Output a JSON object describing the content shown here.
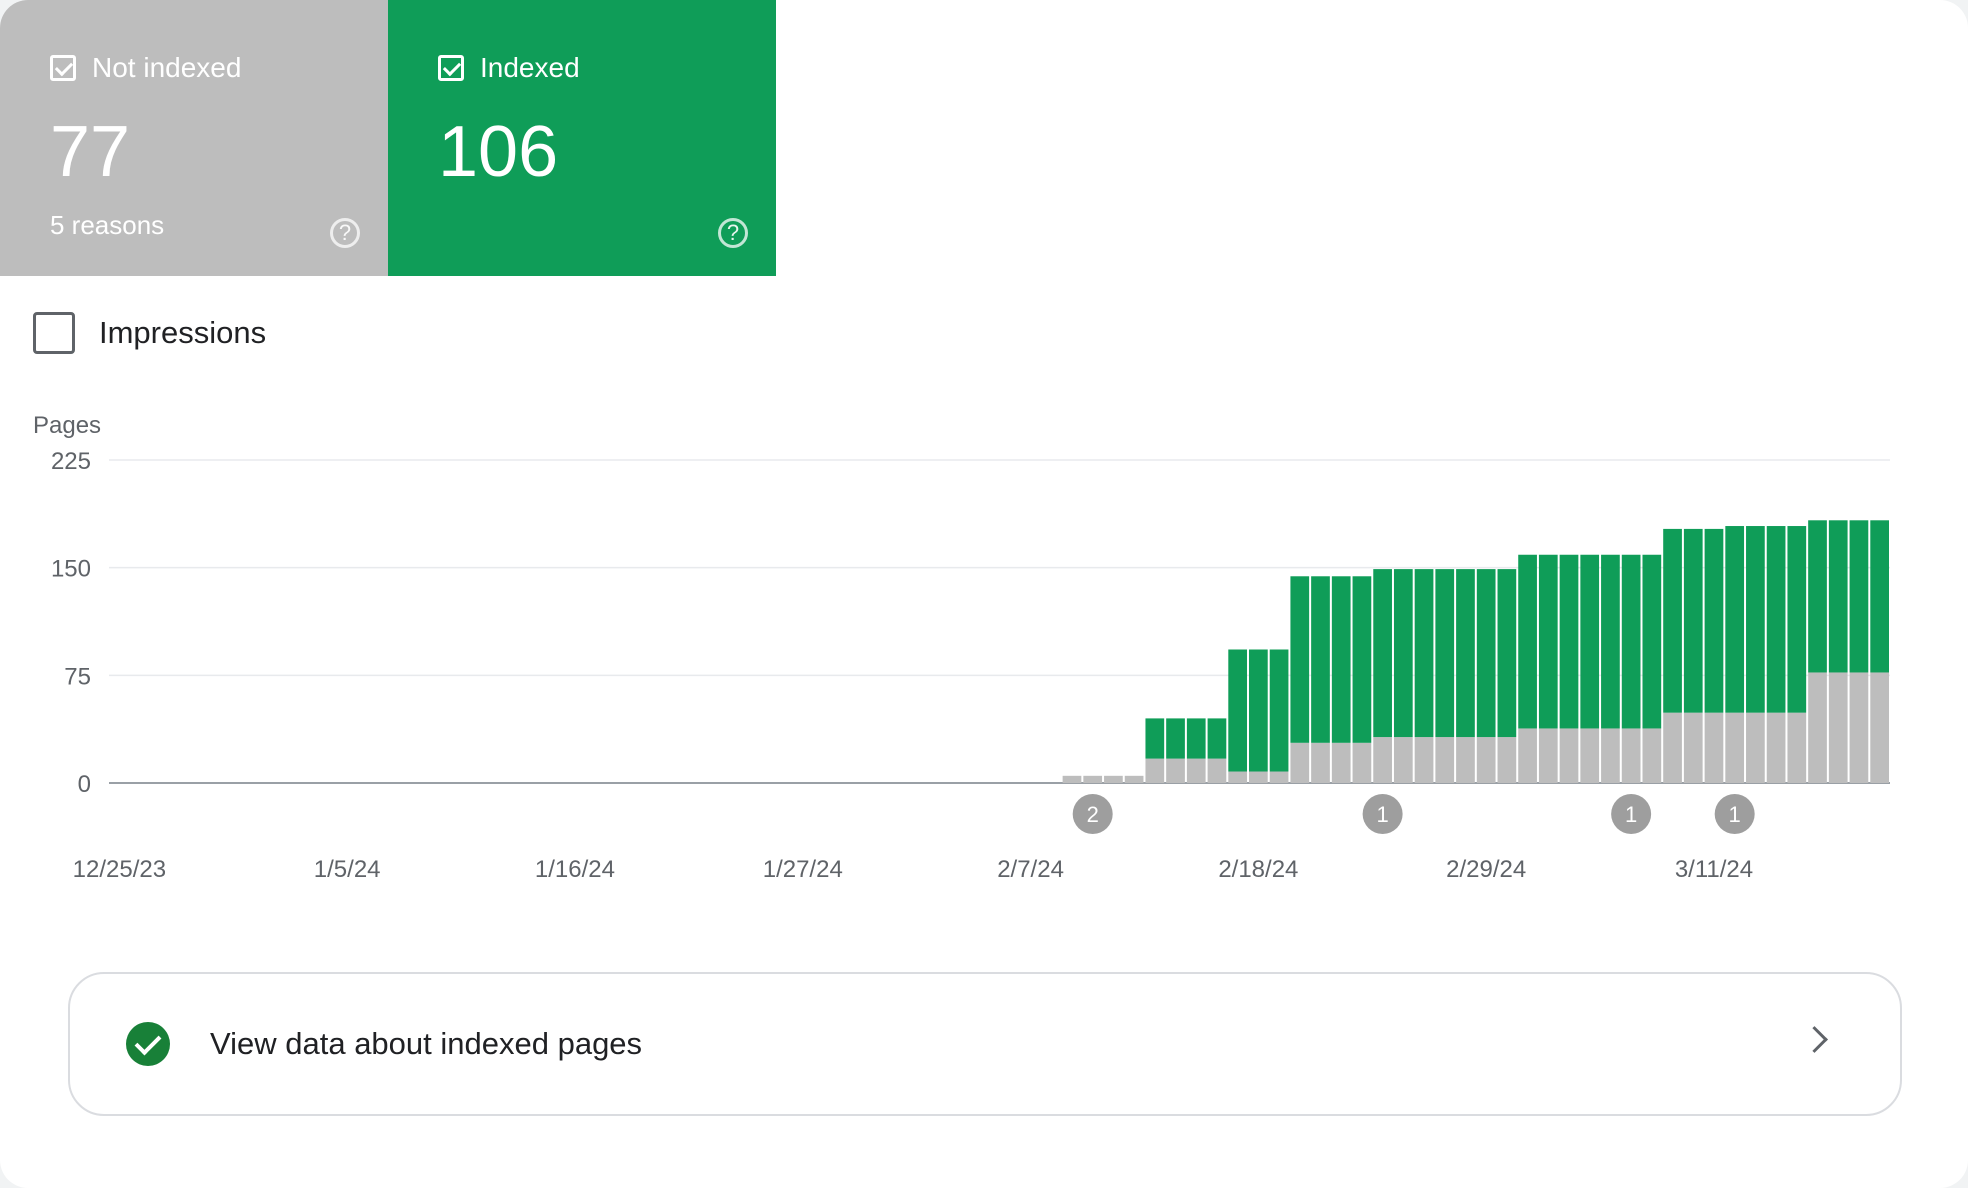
{
  "tiles": {
    "not_indexed": {
      "label": "Not indexed",
      "value": "77",
      "subtitle": "5 reasons",
      "help": "?"
    },
    "indexed": {
      "label": "Indexed",
      "value": "106",
      "help": "?"
    }
  },
  "impressions_label": "Impressions",
  "view_link": {
    "label": "View data about indexed pages"
  },
  "colors": {
    "indexed": "#0f9d58",
    "not_indexed": "#bdbdbd",
    "check": "#188038"
  },
  "chart_data": {
    "type": "bar",
    "stacked": true,
    "ylabel": "Pages",
    "ylim": [
      0,
      225
    ],
    "yticks": [
      0,
      75,
      150,
      225
    ],
    "xticks": [
      "12/25/23",
      "1/5/24",
      "1/16/24",
      "1/27/24",
      "2/7/24",
      "2/18/24",
      "2/29/24",
      "3/11/24"
    ],
    "x_start": "12/25/23",
    "x_end": "3/20/24",
    "grid": true,
    "annotations": [
      {
        "date": "2/10/24",
        "label": "2"
      },
      {
        "date": "2/24/24",
        "label": "1"
      },
      {
        "date": "3/7/24",
        "label": "1"
      },
      {
        "date": "3/12/24",
        "label": "1"
      }
    ],
    "series": [
      {
        "name": "Not indexed",
        "color": "#bdbdbd",
        "x": [
          "2/9/24",
          "2/10/24",
          "2/11/24",
          "2/12/24",
          "2/13/24",
          "2/14/24",
          "2/15/24",
          "2/16/24",
          "2/17/24",
          "2/18/24",
          "2/19/24",
          "2/20/24",
          "2/21/24",
          "2/22/24",
          "2/23/24",
          "2/24/24",
          "2/25/24",
          "2/26/24",
          "2/27/24",
          "2/28/24",
          "2/29/24",
          "3/1/24",
          "3/2/24",
          "3/3/24",
          "3/4/24",
          "3/5/24",
          "3/6/24",
          "3/7/24",
          "3/8/24",
          "3/9/24",
          "3/10/24",
          "3/11/24",
          "3/12/24",
          "3/13/24",
          "3/14/24",
          "3/15/24",
          "3/16/24",
          "3/17/24",
          "3/18/24",
          "3/19/24"
        ],
        "values": [
          5,
          5,
          5,
          5,
          17,
          17,
          17,
          17,
          8,
          8,
          8,
          28,
          28,
          28,
          28,
          32,
          32,
          32,
          32,
          32,
          32,
          32,
          38,
          38,
          38,
          38,
          38,
          38,
          38,
          49,
          49,
          49,
          49,
          49,
          49,
          49,
          77,
          77,
          77,
          77
        ]
      },
      {
        "name": "Indexed",
        "color": "#0f9d58",
        "x": [
          "2/9/24",
          "2/10/24",
          "2/11/24",
          "2/12/24",
          "2/13/24",
          "2/14/24",
          "2/15/24",
          "2/16/24",
          "2/17/24",
          "2/18/24",
          "2/19/24",
          "2/20/24",
          "2/21/24",
          "2/22/24",
          "2/23/24",
          "2/24/24",
          "2/25/24",
          "2/26/24",
          "2/27/24",
          "2/28/24",
          "2/29/24",
          "3/1/24",
          "3/2/24",
          "3/3/24",
          "3/4/24",
          "3/5/24",
          "3/6/24",
          "3/7/24",
          "3/8/24",
          "3/9/24",
          "3/10/24",
          "3/11/24",
          "3/12/24",
          "3/13/24",
          "3/14/24",
          "3/15/24",
          "3/16/24",
          "3/17/24",
          "3/18/24",
          "3/19/24"
        ],
        "values": [
          0,
          0,
          0,
          0,
          28,
          28,
          28,
          28,
          85,
          85,
          85,
          116,
          116,
          116,
          116,
          117,
          117,
          117,
          117,
          117,
          117,
          117,
          121,
          121,
          121,
          121,
          121,
          121,
          121,
          128,
          128,
          128,
          130,
          130,
          130,
          130,
          106,
          106,
          106,
          106
        ]
      }
    ]
  }
}
